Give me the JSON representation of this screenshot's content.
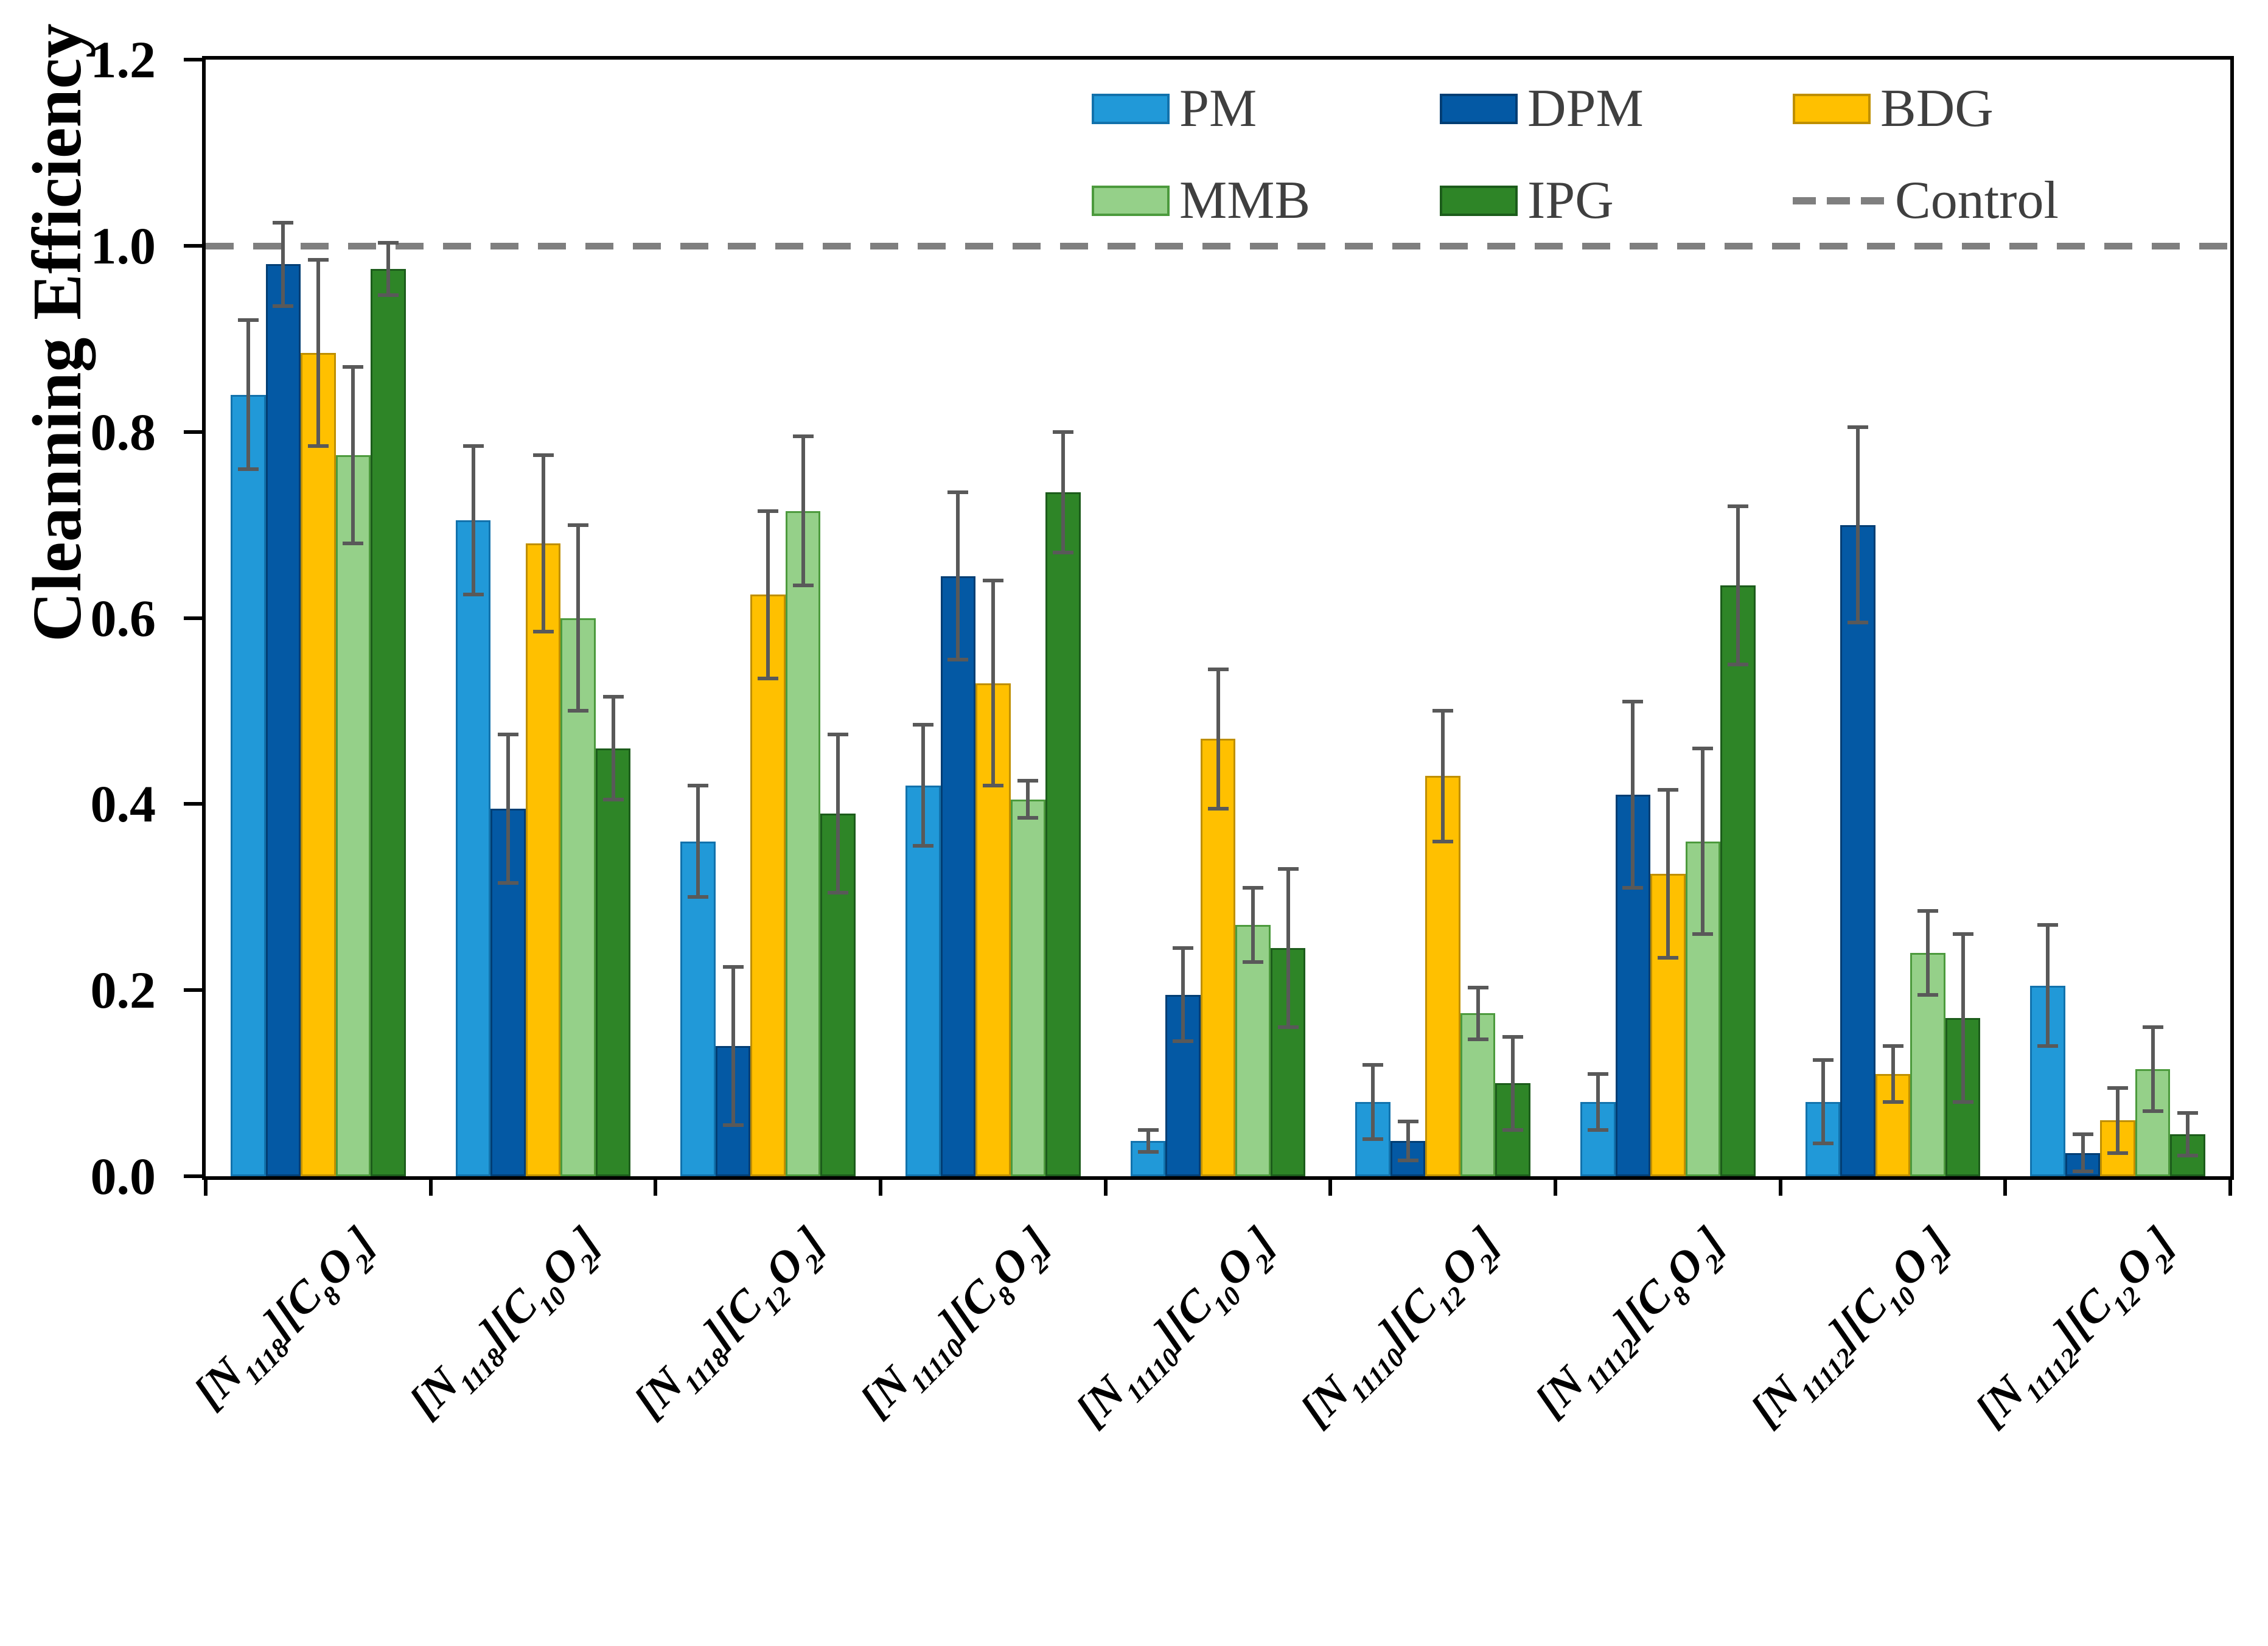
{
  "figure": {
    "y_axis_title": "Cleanning Efficiency",
    "y_tick_labels": [
      "0.0",
      "0.2",
      "0.4",
      "0.6",
      "0.8",
      "1.0",
      "1.2"
    ]
  },
  "legend": {
    "entries": [
      {
        "label": "PM",
        "type": "swatch",
        "row": 0,
        "col": 0
      },
      {
        "label": "DPM",
        "type": "swatch",
        "row": 0,
        "col": 1
      },
      {
        "label": "BDG",
        "type": "swatch",
        "row": 0,
        "col": 2
      },
      {
        "label": "MMB",
        "type": "swatch",
        "row": 1,
        "col": 0
      },
      {
        "label": "IPG",
        "type": "swatch",
        "row": 1,
        "col": 1
      },
      {
        "label": "Control",
        "type": "dash",
        "row": 1,
        "col": 2
      }
    ]
  },
  "chart_data": {
    "type": "bar",
    "title": "",
    "xlabel": "",
    "ylabel": "Cleanning Efficiency",
    "ylim": [
      0,
      1.2
    ],
    "y_tick_step": 0.2,
    "grid": false,
    "legend_position": "top-center-right, two rows, inside plot",
    "error_bars": true,
    "error_bar_color": "#595959",
    "frame_color": "#000000",
    "control_line": {
      "label": "Control",
      "value": 1.0,
      "style": "dashed",
      "color": "#7f7f7f"
    },
    "categories": [
      "[N1118][C8O2]",
      "[N1118][C10O2]",
      "[N1118][C12O2]",
      "[N11110][C8O2]",
      "[N11110][C10O2]",
      "[N11110][C12O2]",
      "[N11112][C8O2]",
      "[N11112][C10O2]",
      "[N11112][C12O2]"
    ],
    "categories_rich": [
      {
        "p1": "[N",
        "s1": "1118",
        "p2": "][C",
        "s2": "8",
        "p3": "O",
        "s3": "2",
        "p4": "]"
      },
      {
        "p1": "[N",
        "s1": "1118",
        "p2": "][C",
        "s2": "10",
        "p3": "O",
        "s3": "2",
        "p4": "]"
      },
      {
        "p1": "[N",
        "s1": "1118",
        "p2": "][C",
        "s2": "12",
        "p3": "O",
        "s3": "2",
        "p4": "]"
      },
      {
        "p1": "[N",
        "s1": "11110",
        "p2": "][C",
        "s2": "8",
        "p3": "O",
        "s3": "2",
        "p4": "]"
      },
      {
        "p1": "[N",
        "s1": "11110",
        "p2": "][C",
        "s2": "10",
        "p3": "O",
        "s3": "2",
        "p4": "]"
      },
      {
        "p1": "[N",
        "s1": "11110",
        "p2": "][C",
        "s2": "12",
        "p3": "O",
        "s3": "2",
        "p4": "]"
      },
      {
        "p1": "[N",
        "s1": "11112",
        "p2": "][C",
        "s2": "8",
        "p3": "O",
        "s3": "2",
        "p4": "]"
      },
      {
        "p1": "[N",
        "s1": "11112",
        "p2": "][C",
        "s2": "10",
        "p3": "O",
        "s3": "2",
        "p4": "]"
      },
      {
        "p1": "[N",
        "s1": "11112",
        "p2": "][C",
        "s2": "12",
        "p3": "O",
        "s3": "2",
        "p4": "]"
      }
    ],
    "series": [
      {
        "name": "PM",
        "color": "#2199d8",
        "border_color": "#1272ac",
        "values": [
          0.84,
          0.705,
          0.36,
          0.42,
          0.038,
          0.08,
          0.08,
          0.08,
          0.205
        ],
        "errors": [
          0.08,
          0.08,
          0.06,
          0.065,
          0.012,
          0.04,
          0.03,
          0.045,
          0.065
        ]
      },
      {
        "name": "DPM",
        "color": "#0459a4",
        "border_color": "#023e74",
        "values": [
          0.98,
          0.395,
          0.14,
          0.645,
          0.195,
          0.038,
          0.41,
          0.7,
          0.025
        ],
        "errors": [
          0.045,
          0.08,
          0.085,
          0.09,
          0.05,
          0.021,
          0.1,
          0.105,
          0.02
        ]
      },
      {
        "name": "BDG",
        "color": "#ffc000",
        "border_color": "#bf8f00",
        "values": [
          0.885,
          0.68,
          0.625,
          0.53,
          0.47,
          0.43,
          0.325,
          0.11,
          0.06
        ],
        "errors": [
          0.1,
          0.095,
          0.09,
          0.11,
          0.075,
          0.07,
          0.09,
          0.03,
          0.035
        ]
      },
      {
        "name": "MMB",
        "color": "#95d089",
        "border_color": "#4c9a3d",
        "values": [
          0.775,
          0.6,
          0.715,
          0.405,
          0.27,
          0.175,
          0.36,
          0.24,
          0.115
        ],
        "errors": [
          0.095,
          0.1,
          0.08,
          0.02,
          0.04,
          0.028,
          0.1,
          0.045,
          0.045
        ]
      },
      {
        "name": "IPG",
        "color": "#2e8527",
        "border_color": "#1c5c1b",
        "values": [
          0.975,
          0.46,
          0.39,
          0.735,
          0.245,
          0.1,
          0.635,
          0.17,
          0.045
        ],
        "errors": [
          0.028,
          0.055,
          0.085,
          0.065,
          0.085,
          0.05,
          0.085,
          0.09,
          0.023
        ]
      }
    ]
  }
}
